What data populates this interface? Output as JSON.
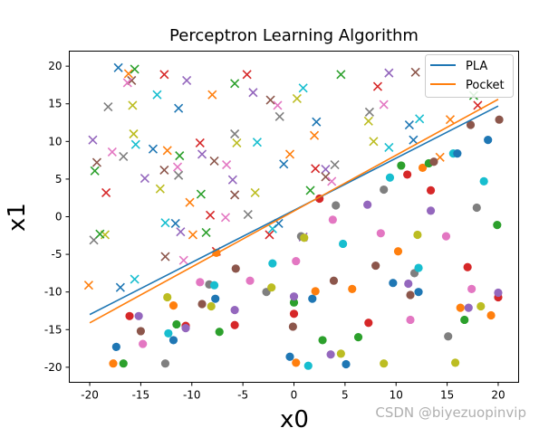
{
  "chart_data": {
    "type": "scatter",
    "title": "Perceptron Learning Algorithm",
    "xlabel": "x0",
    "ylabel": "x1",
    "xlim": [
      -22,
      22
    ],
    "ylim": [
      -22,
      22
    ],
    "xticks": [
      -20,
      -15,
      -10,
      -5,
      0,
      5,
      10,
      15,
      20
    ],
    "yticks": [
      -20,
      -15,
      -10,
      -5,
      0,
      5,
      10,
      15,
      20
    ],
    "grid": false,
    "legend_position": "top-right",
    "colors": [
      "#1f77b4",
      "#ff7f0e",
      "#2ca02c",
      "#d62728",
      "#9467bd",
      "#8c564b",
      "#e377c2",
      "#7f7f7f",
      "#bcbd22",
      "#17becf"
    ],
    "lines": [
      {
        "name": "PLA",
        "color": "#1f77b4",
        "x": [
          -20,
          20
        ],
        "y": [
          -13.0,
          14.7
        ]
      },
      {
        "name": "Pocket",
        "color": "#ff7f0e",
        "x": [
          -20,
          20
        ],
        "y": [
          -14.1,
          15.6
        ]
      }
    ],
    "series": [
      {
        "marker": "x",
        "points": [
          [
            -17.2,
            19.8
          ],
          [
            -16.2,
            19.0
          ],
          [
            -15.6,
            19.6
          ],
          [
            -12.7,
            18.9
          ],
          [
            -10.5,
            18.1
          ],
          [
            -15.9,
            18.1
          ],
          [
            -16.3,
            17.8
          ],
          [
            -18.2,
            14.6
          ],
          [
            -15.8,
            14.8
          ],
          [
            -13.4,
            16.2
          ],
          [
            -11.3,
            14.4
          ],
          [
            -8.0,
            16.2
          ],
          [
            -5.8,
            17.7
          ],
          [
            -4.6,
            18.9
          ],
          [
            -4.0,
            16.5
          ],
          [
            -2.3,
            15.5
          ],
          [
            -1.6,
            14.8
          ],
          [
            -1.4,
            13.3
          ],
          [
            0.3,
            15.7
          ],
          [
            0.9,
            17.1
          ],
          [
            2.2,
            12.6
          ],
          [
            2.0,
            10.8
          ],
          [
            4.6,
            18.9
          ],
          [
            8.2,
            17.3
          ],
          [
            9.3,
            19.1
          ],
          [
            11.9,
            19.2
          ],
          [
            8.8,
            14.9
          ],
          [
            7.4,
            13.9
          ],
          [
            7.3,
            12.7
          ],
          [
            12.3,
            13.0
          ],
          [
            11.3,
            12.2
          ],
          [
            15.3,
            12.9
          ],
          [
            17.6,
            16.1
          ],
          [
            18.0,
            14.8
          ],
          [
            -19.7,
            10.2
          ],
          [
            -19.3,
            7.2
          ],
          [
            -17.8,
            8.6
          ],
          [
            -16.7,
            8.0
          ],
          [
            -15.7,
            11.0
          ],
          [
            -15.5,
            9.6
          ],
          [
            -13.8,
            9.0
          ],
          [
            -12.4,
            8.8
          ],
          [
            -11.2,
            8.1
          ],
          [
            -9.2,
            9.8
          ],
          [
            -9.0,
            8.3
          ],
          [
            -7.8,
            7.4
          ],
          [
            -6.6,
            6.9
          ],
          [
            -5.8,
            11.0
          ],
          [
            -5.6,
            9.8
          ],
          [
            -3.6,
            9.9
          ],
          [
            -1.0,
            7.0
          ],
          [
            -0.4,
            8.3
          ],
          [
            1.6,
            3.5
          ],
          [
            2.1,
            6.4
          ],
          [
            3.1,
            6.3
          ],
          [
            3.1,
            5.3
          ],
          [
            3.7,
            4.7
          ],
          [
            4.0,
            6.9
          ],
          [
            7.8,
            10.0
          ],
          [
            9.3,
            9.2
          ],
          [
            11.7,
            10.2
          ],
          [
            14.3,
            7.9
          ],
          [
            -19.5,
            6.1
          ],
          [
            -18.4,
            3.2
          ],
          [
            -14.6,
            5.1
          ],
          [
            -12.7,
            6.2
          ],
          [
            -11.4,
            6.6
          ],
          [
            -11.3,
            5.5
          ],
          [
            -13.1,
            3.7
          ],
          [
            -12.6,
            -0.8
          ],
          [
            -11.6,
            -0.9
          ],
          [
            -10.2,
            1.9
          ],
          [
            -9.1,
            3.0
          ],
          [
            -8.2,
            0.2
          ],
          [
            -6.0,
            4.9
          ],
          [
            -5.8,
            2.9
          ],
          [
            -6.7,
            -0.1
          ],
          [
            -4.5,
            0.3
          ],
          [
            -3.8,
            3.2
          ],
          [
            -2.1,
            -1.6
          ],
          [
            -1.5,
            -0.9
          ],
          [
            -9.9,
            -2.4
          ],
          [
            -8.6,
            -2.1
          ],
          [
            -7.6,
            -4.6
          ],
          [
            -11.1,
            -2.0
          ],
          [
            -12.6,
            -5.3
          ],
          [
            -10.8,
            -5.8
          ],
          [
            -19.6,
            -3.1
          ],
          [
            -18.5,
            -2.4
          ],
          [
            -15.6,
            -8.3
          ],
          [
            -17.0,
            -9.4
          ],
          [
            -20.1,
            -9.1
          ],
          [
            -19.0,
            -2.3
          ],
          [
            -2.4,
            -2.4
          ],
          [
            0.9,
            -2.7
          ]
        ]
      },
      {
        "marker": "o",
        "points": [
          [
            -17.4,
            -17.3
          ],
          [
            -17.7,
            -19.5
          ],
          [
            -16.7,
            -19.5
          ],
          [
            -16.1,
            -13.2
          ],
          [
            -15.2,
            -13.2
          ],
          [
            -15.0,
            -15.2
          ],
          [
            -14.8,
            -16.9
          ],
          [
            -12.6,
            -19.5
          ],
          [
            -12.4,
            -10.7
          ],
          [
            -12.3,
            -15.5
          ],
          [
            -11.8,
            -16.4
          ],
          [
            -11.8,
            -11.8
          ],
          [
            -11.5,
            -14.3
          ],
          [
            -10.6,
            -14.5
          ],
          [
            -10.6,
            -14.8
          ],
          [
            -9.0,
            -11.6
          ],
          [
            -9.2,
            -8.7
          ],
          [
            -8.3,
            -9.0
          ],
          [
            -8.1,
            -11.9
          ],
          [
            -7.8,
            -9.1
          ],
          [
            -7.7,
            -10.9
          ],
          [
            -7.6,
            -4.8
          ],
          [
            -7.3,
            -15.3
          ],
          [
            -5.8,
            -14.4
          ],
          [
            -5.8,
            -12.4
          ],
          [
            -5.7,
            -6.9
          ],
          [
            -4.3,
            -8.5
          ],
          [
            -2.7,
            -10.0
          ],
          [
            -2.2,
            -9.4
          ],
          [
            -2.1,
            -6.2
          ],
          [
            -0.4,
            -18.6
          ],
          [
            0.2,
            -19.4
          ],
          [
            0.0,
            -11.4
          ],
          [
            0.0,
            -12.9
          ],
          [
            0.0,
            -10.6
          ],
          [
            -0.1,
            -14.6
          ],
          [
            0.2,
            -5.9
          ],
          [
            0.7,
            -2.6
          ],
          [
            1.0,
            -2.8
          ],
          [
            1.4,
            -19.8
          ],
          [
            1.8,
            -10.9
          ],
          [
            2.1,
            -9.9
          ],
          [
            2.8,
            -16.4
          ],
          [
            2.5,
            2.4
          ],
          [
            3.6,
            -18.3
          ],
          [
            3.9,
            -8.5
          ],
          [
            3.8,
            -0.4
          ],
          [
            4.1,
            1.5
          ],
          [
            4.6,
            -18.2
          ],
          [
            4.8,
            -3.6
          ],
          [
            5.1,
            -19.6
          ],
          [
            5.7,
            -9.6
          ],
          [
            6.3,
            -16.0
          ],
          [
            7.3,
            -14.1
          ],
          [
            7.2,
            1.6
          ],
          [
            8.0,
            -6.5
          ],
          [
            8.5,
            -2.2
          ],
          [
            8.8,
            3.6
          ],
          [
            8.8,
            -19.5
          ],
          [
            9.4,
            5.2
          ],
          [
            9.7,
            -8.8
          ],
          [
            10.2,
            -4.6
          ],
          [
            10.5,
            6.8
          ],
          [
            11.1,
            5.6
          ],
          [
            11.2,
            -8.9
          ],
          [
            11.4,
            -10.4
          ],
          [
            11.4,
            -13.7
          ],
          [
            11.8,
            -7.5
          ],
          [
            12.1,
            -2.4
          ],
          [
            12.2,
            -6.8
          ],
          [
            12.2,
            -10.0
          ],
          [
            12.6,
            6.5
          ],
          [
            13.2,
            7.1
          ],
          [
            13.4,
            3.5
          ],
          [
            13.4,
            0.8
          ],
          [
            13.7,
            7.3
          ],
          [
            14.9,
            -2.6
          ],
          [
            15.1,
            -15.9
          ],
          [
            15.8,
            -19.4
          ],
          [
            15.6,
            8.4
          ],
          [
            16.0,
            8.4
          ],
          [
            16.3,
            -12.1
          ],
          [
            16.7,
            -13.7
          ],
          [
            17.0,
            -6.7
          ],
          [
            17.1,
            -12.1
          ],
          [
            17.3,
            12.2
          ],
          [
            17.4,
            -9.6
          ],
          [
            17.9,
            1.2
          ],
          [
            18.3,
            -11.9
          ],
          [
            18.6,
            4.7
          ],
          [
            19.0,
            10.2
          ],
          [
            19.3,
            -13.1
          ],
          [
            19.9,
            -1.1
          ],
          [
            20.0,
            -10.7
          ],
          [
            20.0,
            -10.1
          ],
          [
            20.1,
            12.9
          ]
        ]
      }
    ]
  },
  "watermark": "CSDN @biyezuopinvip"
}
